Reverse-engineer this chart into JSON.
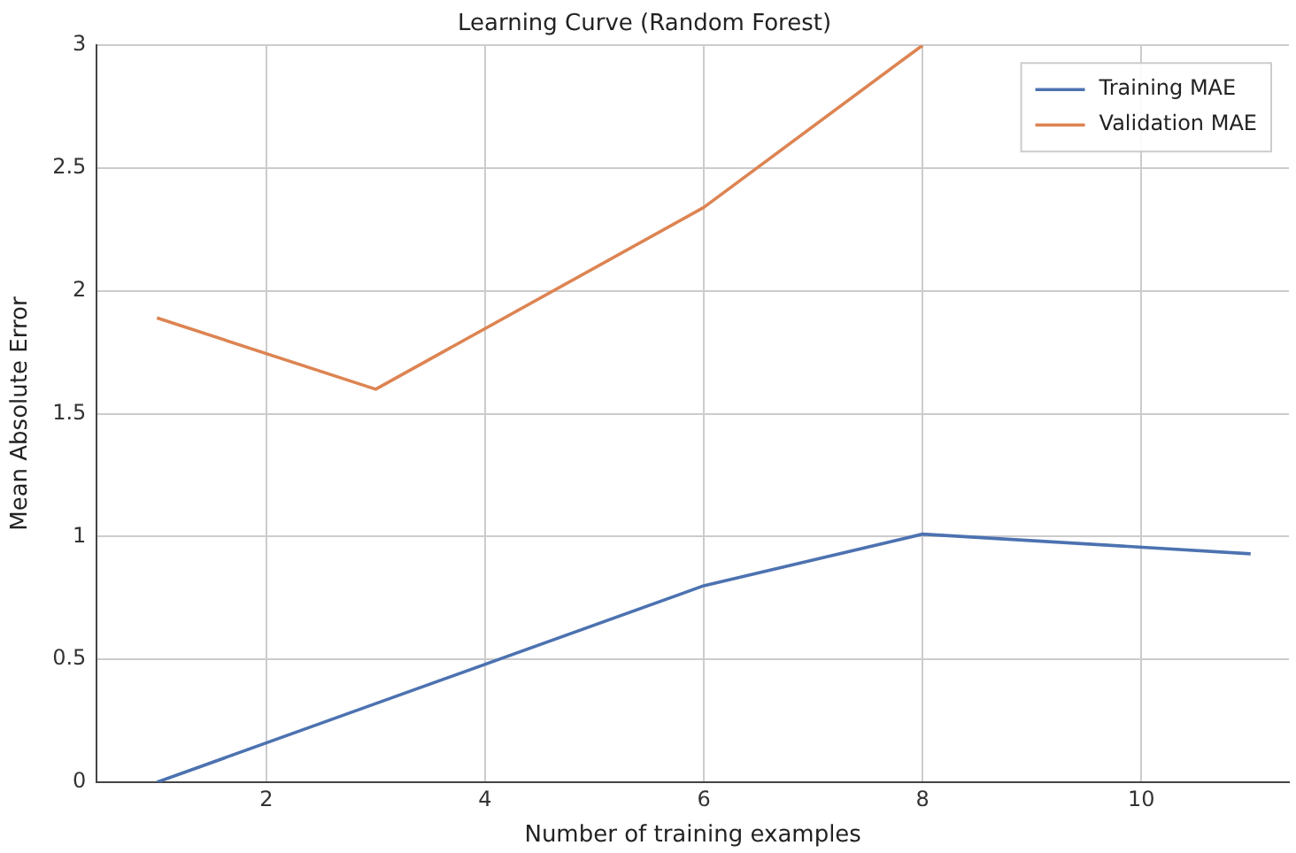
{
  "chart_data": {
    "type": "line",
    "title": "Learning Curve (Random Forest)",
    "xlabel": "Number of training examples",
    "ylabel": "Mean Absolute Error",
    "x": [
      1,
      3,
      6,
      8,
      11
    ],
    "series": [
      {
        "name": "Training MAE",
        "color": "#4c72b0",
        "values": [
          0,
          0.32,
          0.8,
          1.01,
          0.93
        ]
      },
      {
        "name": "Validation MAE",
        "color": "#dd8452",
        "values": [
          1.89,
          1.6,
          2.34,
          3.0,
          null
        ]
      }
    ],
    "xlim": [
      0.45,
      11.35
    ],
    "xticks": [
      2,
      4,
      6,
      8,
      10
    ],
    "ylim": [
      0,
      3
    ],
    "yticks": [
      0,
      0.5,
      1,
      1.5,
      2,
      2.5,
      3
    ],
    "grid": true,
    "legend": "top right",
    "marker": "none",
    "line_style": "solid"
  }
}
